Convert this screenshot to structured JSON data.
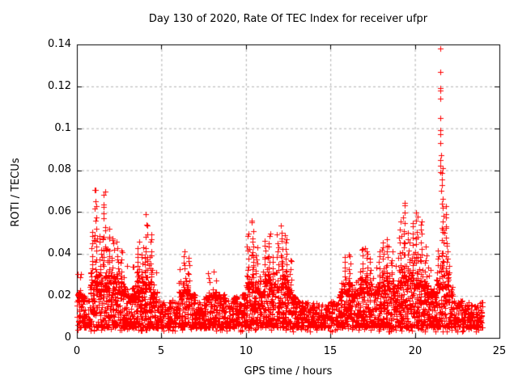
{
  "chart_data": {
    "type": "scatter",
    "title": "Day 130 of 2020, Rate Of TEC Index for receiver ufpr",
    "xlabel": "GPS time / hours",
    "ylabel": "ROTI / TECUs",
    "xlim": [
      0,
      25
    ],
    "ylim": [
      0,
      0.14
    ],
    "xticks": [
      0,
      5,
      10,
      15,
      20,
      25
    ],
    "yticks": [
      0,
      0.02,
      0.04,
      0.06,
      0.08,
      0.1,
      0.12,
      0.14
    ],
    "xtick_labels": [
      "0",
      "5",
      "10",
      "15",
      "20",
      "25"
    ],
    "ytick_labels": [
      "0",
      "0.02",
      "0.04",
      "0.06",
      "0.08",
      "0.1",
      "0.12",
      "0.14"
    ],
    "grid": true,
    "grid_color": "#b0b0b0",
    "axis_color": "#000000",
    "marker": "plus",
    "marker_color": "#ff0000",
    "series_name": "ROTI",
    "data_time_range_hours": [
      0,
      24
    ],
    "baseline_band_tecus": {
      "min": 0.004,
      "max": 0.022
    },
    "upper_envelope_quarter_hour": [
      [
        0,
        0.034
      ],
      [
        0.25,
        0.03
      ],
      [
        0.5,
        0.026
      ],
      [
        0.75,
        0.05
      ],
      [
        1,
        0.072
      ],
      [
        1.25,
        0.048
      ],
      [
        1.5,
        0.071
      ],
      [
        1.75,
        0.052
      ],
      [
        2,
        0.049
      ],
      [
        2.25,
        0.045
      ],
      [
        2.5,
        0.042
      ],
      [
        2.75,
        0.036
      ],
      [
        3,
        0.03
      ],
      [
        3.25,
        0.034
      ],
      [
        3.5,
        0.046
      ],
      [
        3.75,
        0.042
      ],
      [
        4,
        0.058
      ],
      [
        4.25,
        0.05
      ],
      [
        4.5,
        0.032
      ],
      [
        4.75,
        0.024
      ],
      [
        5,
        0.021
      ],
      [
        5.25,
        0.022
      ],
      [
        5.5,
        0.026
      ],
      [
        5.75,
        0.024
      ],
      [
        6,
        0.034
      ],
      [
        6.25,
        0.042
      ],
      [
        6.5,
        0.038
      ],
      [
        6.75,
        0.03
      ],
      [
        7,
        0.024
      ],
      [
        7.25,
        0.022
      ],
      [
        7.5,
        0.028
      ],
      [
        7.75,
        0.031
      ],
      [
        8,
        0.033
      ],
      [
        8.25,
        0.03
      ],
      [
        8.5,
        0.03
      ],
      [
        8.75,
        0.026
      ],
      [
        9,
        0.025
      ],
      [
        9.25,
        0.028
      ],
      [
        9.5,
        0.024
      ],
      [
        9.75,
        0.03
      ],
      [
        10,
        0.05
      ],
      [
        10.25,
        0.057
      ],
      [
        10.5,
        0.042
      ],
      [
        10.75,
        0.032
      ],
      [
        11,
        0.046
      ],
      [
        11.25,
        0.05
      ],
      [
        11.5,
        0.038
      ],
      [
        11.75,
        0.048
      ],
      [
        12,
        0.053
      ],
      [
        12.25,
        0.05
      ],
      [
        12.5,
        0.038
      ],
      [
        12.75,
        0.028
      ],
      [
        13,
        0.024
      ],
      [
        13.25,
        0.021
      ],
      [
        13.5,
        0.02
      ],
      [
        13.75,
        0.022
      ],
      [
        14,
        0.021
      ],
      [
        14.25,
        0.02
      ],
      [
        14.5,
        0.02
      ],
      [
        14.75,
        0.022
      ],
      [
        15,
        0.024
      ],
      [
        15.25,
        0.022
      ],
      [
        15.5,
        0.032
      ],
      [
        15.75,
        0.038
      ],
      [
        16,
        0.04
      ],
      [
        16.25,
        0.034
      ],
      [
        16.5,
        0.036
      ],
      [
        16.75,
        0.043
      ],
      [
        17,
        0.044
      ],
      [
        17.25,
        0.038
      ],
      [
        17.5,
        0.036
      ],
      [
        17.75,
        0.04
      ],
      [
        18,
        0.046
      ],
      [
        18.25,
        0.048
      ],
      [
        18.5,
        0.04
      ],
      [
        18.75,
        0.036
      ],
      [
        19,
        0.055
      ],
      [
        19.25,
        0.065
      ],
      [
        19.5,
        0.05
      ],
      [
        19.75,
        0.055
      ],
      [
        20,
        0.06
      ],
      [
        20.25,
        0.056
      ],
      [
        20.5,
        0.042
      ],
      [
        20.75,
        0.036
      ],
      [
        21,
        0.032
      ],
      [
        21.25,
        0.042
      ],
      [
        21.5,
        0.081
      ],
      [
        21.75,
        0.062
      ],
      [
        22,
        0.036
      ],
      [
        22.25,
        0.026
      ],
      [
        22.5,
        0.025
      ],
      [
        22.75,
        0.024
      ],
      [
        23,
        0.022
      ],
      [
        23.25,
        0.021
      ],
      [
        23.5,
        0.023
      ],
      [
        23.75,
        0.024
      ]
    ],
    "peak_points": [
      [
        21.5,
        0.138
      ],
      [
        21.5,
        0.127
      ],
      [
        21.52,
        0.119
      ],
      [
        21.48,
        0.118
      ],
      [
        21.5,
        0.114
      ],
      [
        21.5,
        0.105
      ],
      [
        21.52,
        0.099
      ],
      [
        21.5,
        0.097
      ],
      [
        21.5,
        0.093
      ],
      [
        21.53,
        0.087
      ],
      [
        21.48,
        0.085
      ],
      [
        21.5,
        0.082
      ],
      [
        21.5,
        0.079
      ]
    ],
    "seed": 20200510
  }
}
